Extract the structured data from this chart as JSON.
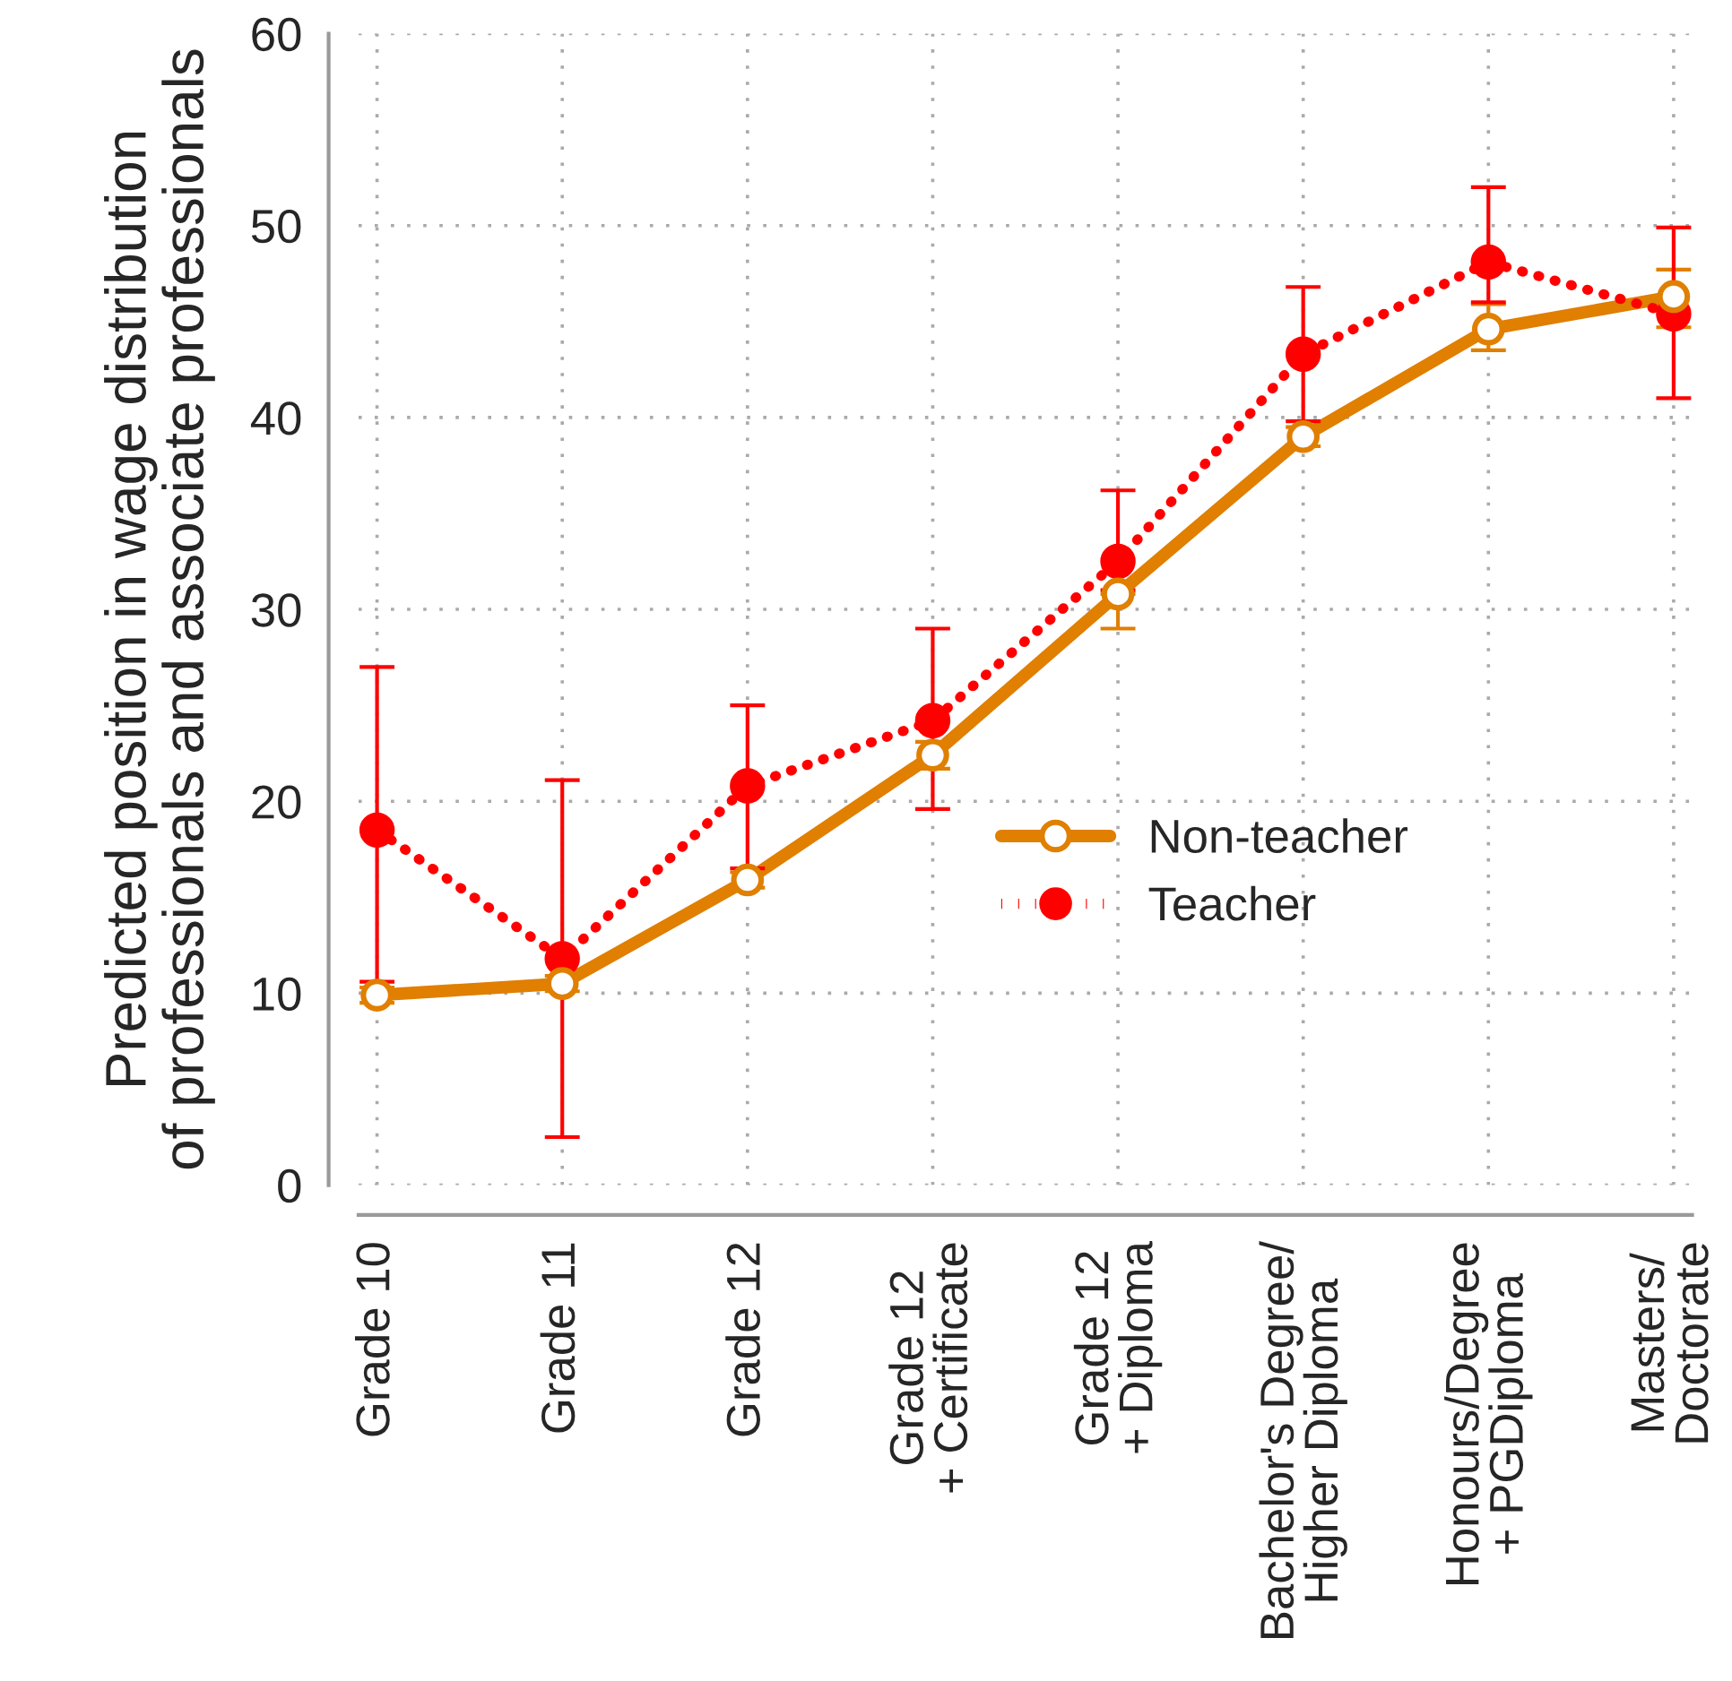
{
  "chart_data": {
    "type": "line",
    "ylabel": "Predicted position in wage distribution\nof professionals and associate professionals",
    "categories": [
      "Grade 10",
      "Grade 11",
      "Grade 12",
      "Grade 12\n+ Certificate",
      "Grade 12\n+ Diploma",
      "Bachelor's Degree/\nHigher Diploma",
      "Honours/Degree\n+ PGDiploma",
      "Masters/\nDoctorate"
    ],
    "series": [
      {
        "name": "Non-teacher",
        "color": "#e07f00",
        "marker": "circle",
        "line_style": "solid",
        "values": [
          9.9,
          10.5,
          15.9,
          22.4,
          30.8,
          39.0,
          44.6,
          46.3
        ],
        "errors": [
          [
            9.5,
            10.3
          ],
          [
            10.1,
            10.9
          ],
          [
            15.5,
            16.3
          ],
          [
            21.7,
            23.1
          ],
          [
            29.0,
            30.8
          ],
          [
            38.5,
            39.5
          ],
          [
            43.5,
            45.9
          ],
          [
            44.7,
            47.7
          ]
        ]
      },
      {
        "name": "Teacher",
        "color": "#ff0000",
        "marker": "circle",
        "line_style": "dotted",
        "values": [
          18.5,
          11.8,
          20.8,
          24.2,
          32.5,
          43.3,
          48.1,
          45.4
        ],
        "errors": [
          [
            10.6,
            27.0
          ],
          [
            2.5,
            21.1
          ],
          [
            16.5,
            25.0
          ],
          [
            19.6,
            29.0
          ],
          [
            31.0,
            36.2
          ],
          [
            39.8,
            46.8
          ],
          [
            46.0,
            52.0
          ],
          [
            41.0,
            49.9
          ]
        ]
      }
    ],
    "ylim": [
      0,
      60
    ],
    "yticks": [
      0,
      10,
      20,
      30,
      40,
      50,
      60
    ],
    "grid": true,
    "legend": "center right"
  }
}
